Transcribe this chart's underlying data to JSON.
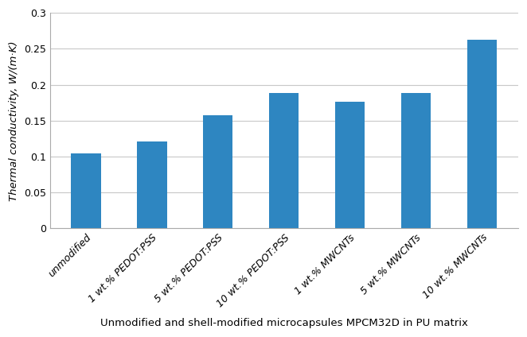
{
  "categories": [
    "unmodified",
    "1 wt.% PEDOT:PSS",
    "5 wt.% PEDOT:PSS",
    "10 wt.% PEDOT:PSS",
    "1 wt.% MWCNTs",
    "5 wt.% MWCNTs",
    "10 wt.% MWCNTs"
  ],
  "values": [
    0.105,
    0.121,
    0.158,
    0.188,
    0.176,
    0.188,
    0.263
  ],
  "bar_color": "#2E86C1",
  "ylabel": "Thermal conductivity, W/(m·K)",
  "xlabel": "Unmodified and shell-modified microcapsules MPCM32D in PU matrix",
  "ylim": [
    0,
    0.3
  ],
  "yticks": [
    0,
    0.05,
    0.1,
    0.15,
    0.2,
    0.25,
    0.3
  ],
  "ytick_labels": [
    "0",
    "0.05",
    "0.1",
    "0.15",
    "0.2",
    "0.25",
    "0.3"
  ],
  "background_color": "#ffffff",
  "grid_color": "#c8c8c8",
  "xlabel_fontsize": 9.5,
  "ylabel_fontsize": 9.5,
  "tick_fontsize": 9,
  "bar_width": 0.45
}
